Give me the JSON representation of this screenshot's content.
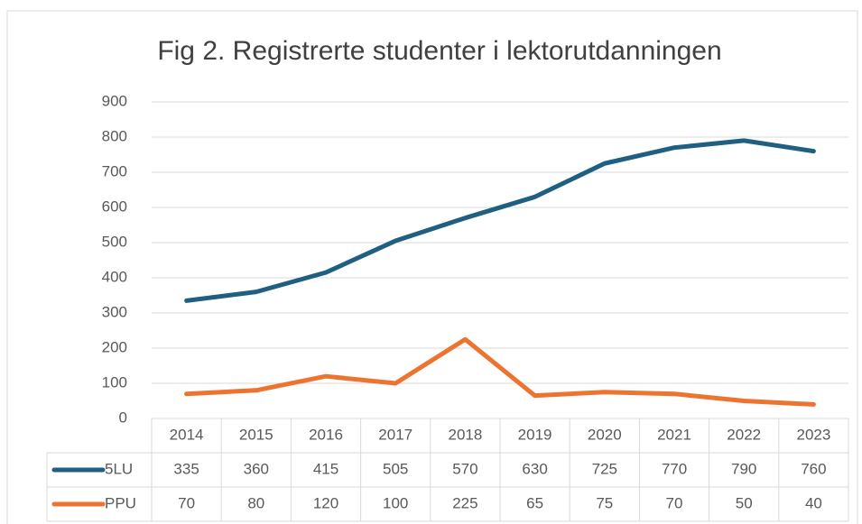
{
  "chart_data": {
    "type": "line",
    "title": "Fig 2. Registrerte studenter i lektorutdanningen",
    "categories": [
      "2014",
      "2015",
      "2016",
      "2017",
      "2018",
      "2019",
      "2020",
      "2021",
      "2022",
      "2023"
    ],
    "series": [
      {
        "name": "5LU",
        "color": "#1f5f82",
        "values": [
          335,
          360,
          415,
          505,
          570,
          630,
          725,
          770,
          790,
          760
        ]
      },
      {
        "name": "PPU",
        "color": "#ec7430",
        "values": [
          70,
          80,
          120,
          100,
          225,
          65,
          75,
          70,
          50,
          40
        ]
      }
    ],
    "ylim": [
      0,
      900
    ],
    "yticks": [
      0,
      100,
      200,
      300,
      400,
      500,
      600,
      700,
      800,
      900
    ],
    "grid": true
  }
}
